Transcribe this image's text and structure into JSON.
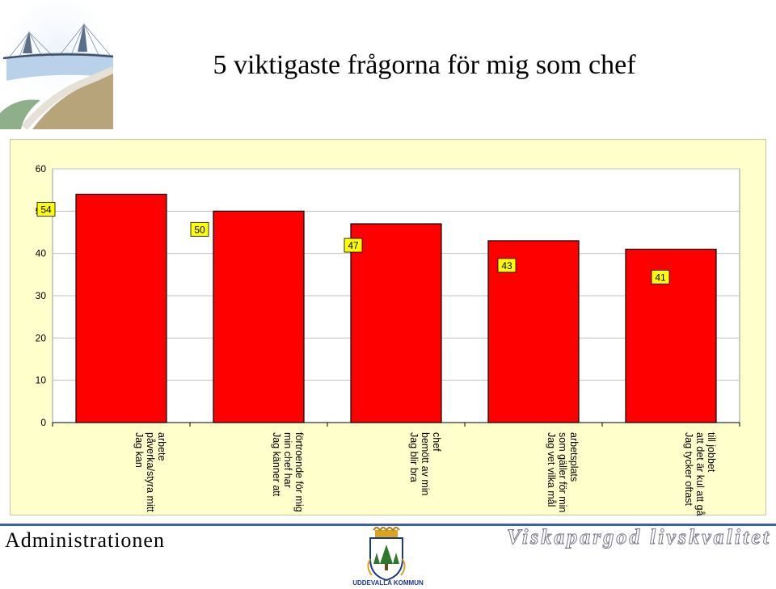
{
  "title": "5 viktigaste frågorna för mig som chef",
  "colors": {
    "bar": "#ff0000",
    "panel": "#ffffcc",
    "plot": "#ffffff",
    "label_box": "#ffff00",
    "footer_line": "#3c5fb0"
  },
  "chart_data": {
    "type": "bar",
    "categories": [
      [
        "Jag kan",
        "påverka/styra mitt",
        "arbete"
      ],
      [
        "Jag känner att",
        "min chef har",
        "förtroende för mig"
      ],
      [
        "Jag blir bra",
        "bemött av min",
        "chef"
      ],
      [
        "Jag vet vilka mål",
        "som gäller för min",
        "arbetsplats"
      ],
      [
        "Jag tycker oftast",
        "att det är kul att gå",
        "till jobbet"
      ]
    ],
    "values": [
      54,
      50,
      47,
      43,
      41
    ],
    "ylim": [
      0,
      60
    ],
    "yticks": [
      0,
      10,
      20,
      30,
      40,
      50,
      60
    ],
    "grid": true,
    "legend": "none",
    "title": "",
    "xlabel": "",
    "ylabel": ""
  },
  "footer": {
    "left": "Administrationen",
    "right": "Viskapargod livskvalitet",
    "crest_caption": "UDDEVALLA KOMMUN"
  }
}
